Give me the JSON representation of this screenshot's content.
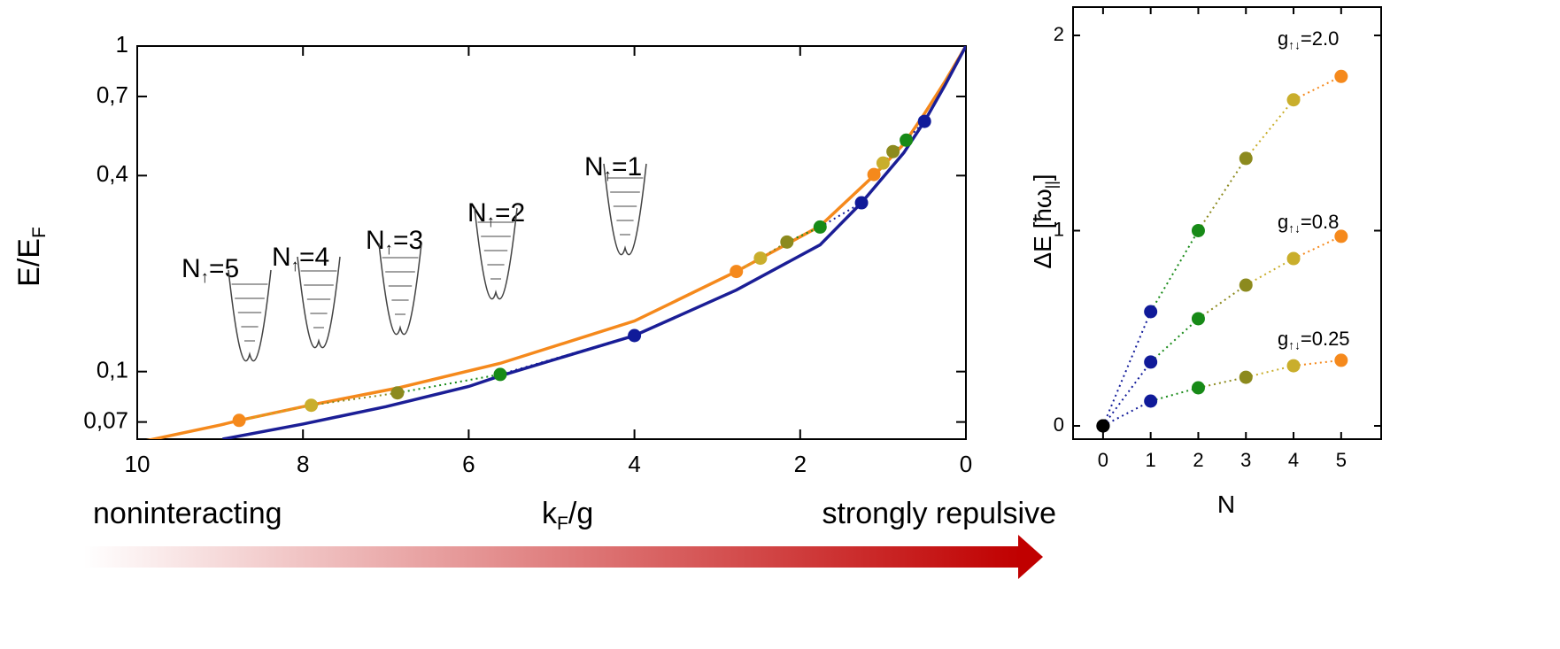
{
  "chart_data": [
    {
      "type": "line",
      "ylabel": [
        "E/E",
        "F"
      ],
      "xlabel": [
        "k",
        "F",
        "/g"
      ],
      "xlim": [
        10,
        0
      ],
      "ylim": [
        0.062,
        1
      ],
      "log_y": true,
      "xticks": [
        10,
        8,
        6,
        4,
        2,
        0
      ],
      "yticks": [
        {
          "value": 0.07,
          "label": "0,07"
        },
        {
          "value": 0.1,
          "label": "0,1"
        },
        {
          "value": 0.4,
          "label": "0,4"
        },
        {
          "value": 0.7,
          "label": "0,7"
        },
        1
      ],
      "series": [
        {
          "color": "#f5891c",
          "x": [
            10,
            9,
            8.77,
            7.9,
            6.86,
            5.62,
            4,
            2.77,
            1.76,
            1.11,
            0.75,
            0.5,
            0.25,
            0
          ],
          "values": [
            0.0605,
            0.0685,
            0.0708,
            0.079,
            0.089,
            0.106,
            0.143,
            0.203,
            0.28,
            0.4,
            0.5,
            0.62,
            0.78,
            1
          ]
        },
        {
          "color": "#1b1e96",
          "x": [
            8.97,
            8,
            7,
            6,
            5.62,
            4,
            2.77,
            1.76,
            1.26,
            0.75,
            0.5,
            0.25,
            0
          ],
          "values": [
            0.062,
            0.069,
            0.078,
            0.09,
            0.097,
            0.129,
            0.178,
            0.245,
            0.33,
            0.47,
            0.587,
            0.76,
            1
          ]
        }
      ],
      "points": [
        {
          "x": [
            8.77,
            7.9,
            6.86,
            5.62,
            4.0
          ],
          "values": [
            0.0708,
            0.0788,
            0.086,
            0.098,
            0.129
          ],
          "colors": [
            "#f5891c",
            "#c9ae2c",
            "#8c8a1e",
            "#178a17",
            "#101a99"
          ]
        },
        {
          "x": [
            2.77,
            2.48,
            2.16,
            1.76,
            1.26
          ],
          "values": [
            0.203,
            0.223,
            0.25,
            0.278,
            0.33
          ],
          "colors": [
            "#f5891c",
            "#c9ae2c",
            "#8c8a1e",
            "#178a17",
            "#101a99"
          ]
        },
        {
          "x": [
            1.11,
            1.0,
            0.88,
            0.72,
            0.5
          ],
          "values": [
            0.403,
            0.437,
            0.474,
            0.514,
            0.587
          ],
          "colors": [
            "#f5891c",
            "#c9ae2c",
            "#8c8a1e",
            "#178a17",
            "#101a99"
          ]
        }
      ],
      "annotations": [
        [
          "N",
          "↑",
          "=5"
        ],
        [
          "N",
          "↑",
          "=4"
        ],
        [
          "N",
          "↑",
          "=3"
        ],
        [
          "N",
          "↑",
          "=2"
        ],
        [
          "N",
          "↑",
          "=1"
        ]
      ]
    },
    {
      "type": "scatter",
      "ylabel": [
        "ΔE [ħω",
        "||",
        "]"
      ],
      "xlabel": [
        "N"
      ],
      "xlim": [
        -0.63,
        5.84
      ],
      "ylim": [
        -0.068,
        2.145
      ],
      "xticks": [
        0,
        1,
        2,
        3,
        4,
        5
      ],
      "yticks": [
        0,
        1,
        2
      ],
      "series": [
        {
          "label": [
            "g",
            "↑↓",
            "=2.0"
          ],
          "x": [
            0,
            1,
            2,
            3,
            4,
            5
          ],
          "values": [
            0,
            0.585,
            1.0,
            1.37,
            1.67,
            1.79
          ],
          "colors": [
            "#000000",
            "#101a99",
            "#178a17",
            "#8c8a1e",
            "#c9ae2c",
            "#f5891c"
          ]
        },
        {
          "label": [
            "g",
            "↑↓",
            "=0.8"
          ],
          "x": [
            0,
            1,
            2,
            3,
            4,
            5
          ],
          "values": [
            0,
            0.327,
            0.549,
            0.721,
            0.857,
            0.971
          ],
          "colors": [
            "#000000",
            "#101a99",
            "#178a17",
            "#8c8a1e",
            "#c9ae2c",
            "#f5891c"
          ]
        },
        {
          "label": [
            "g",
            "↑↓",
            "=0.25"
          ],
          "x": [
            0,
            1,
            2,
            3,
            4,
            5
          ],
          "values": [
            0,
            0.127,
            0.195,
            0.249,
            0.308,
            0.336
          ],
          "colors": [
            "#000000",
            "#101a99",
            "#178a17",
            "#8c8a1e",
            "#c9ae2c",
            "#f5891c"
          ]
        }
      ]
    }
  ],
  "footer": {
    "left": "noninteracting",
    "right": "strongly repulsive"
  }
}
